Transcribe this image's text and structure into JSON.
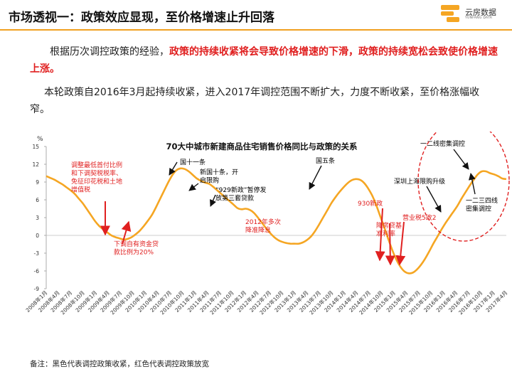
{
  "header": {
    "title": "市场透视一：政策效应显现，至价格增速止升回落",
    "logo_name": "云房数据",
    "logo_sub": "YUNFANG DATA",
    "accent_color": "#f0a020"
  },
  "paragraphs": {
    "p1_black": "根据历次调控政策的经验，",
    "p1_red": "政策的持续收紧将会导致价格增速的下滑，政策的持续宽松会致使价格增速上涨。",
    "p2": "本轮政策自2016年3月起持续收紧，进入2017年调控范围不断扩大，力度不断收紧，至价格涨幅收窄。"
  },
  "footnote": "备注：黑色代表调控政策收紧，红色代表调控政策放宽",
  "chart_data": {
    "type": "line",
    "title": "70大中城市新建商品住宅销售价格同比与政策的关系",
    "ylabel": "%",
    "ylim": [
      -9,
      15
    ],
    "yticks": [
      15,
      12,
      9,
      6,
      3,
      0,
      -3,
      -6,
      -9
    ],
    "xtick_labels": [
      "2008年1月",
      "2008年4月",
      "2008年7月",
      "2008年10月",
      "2009年1月",
      "2009年4月",
      "2009年7月",
      "2009年10月",
      "2010年1月",
      "2010年4月",
      "2010年7月",
      "2010年10月",
      "2011年1月",
      "2011年4月",
      "2011年7月",
      "2011年10月",
      "2012年1月",
      "2012年4月",
      "2012年7月",
      "2012年10月",
      "2013年1月",
      "2013年4月",
      "2013年7月",
      "2013年10月",
      "2014年1月",
      "2014年4月",
      "2014年7月",
      "2014年10月",
      "2015年1月",
      "2015年4月",
      "2015年7月",
      "2015年10月",
      "2016年1月",
      "2016年4月",
      "2016年7月",
      "2016年10月",
      "2017年1月",
      "2017年4月"
    ],
    "series": [
      {
        "color": "#f5a623",
        "values": [
          10.0,
          9.7,
          9.4,
          9.0,
          8.6,
          8.1,
          7.6,
          7.0,
          6.2,
          5.4,
          4.4,
          3.4,
          2.4,
          1.6,
          1.0,
          0.5,
          0.0,
          -0.3,
          -0.5,
          -0.7,
          -0.6,
          -0.3,
          0.2,
          0.8,
          1.6,
          2.5,
          3.5,
          4.8,
          6.2,
          7.6,
          9.0,
          10.2,
          11.0,
          11.3,
          11.2,
          10.8,
          10.2,
          9.6,
          9.2,
          8.9,
          8.7,
          8.2,
          7.6,
          7.0,
          6.4,
          5.8,
          5.2,
          4.6,
          4.4,
          4.5,
          4.3,
          3.8,
          3.0,
          2.1,
          1.2,
          0.4,
          -0.3,
          -0.8,
          -1.1,
          -1.3,
          -1.4,
          -1.4,
          -1.4,
          -1.2,
          -0.8,
          -0.2,
          0.7,
          1.8,
          3.0,
          4.2,
          5.4,
          6.4,
          7.3,
          8.1,
          8.8,
          9.3,
          9.5,
          9.4,
          8.9,
          8.0,
          6.8,
          5.2,
          3.3,
          1.4,
          -0.6,
          -2.5,
          -4.1,
          -5.3,
          -6.1,
          -6.4,
          -6.3,
          -5.8,
          -5.0,
          -4.0,
          -2.8,
          -1.5,
          -0.3,
          0.9,
          2.0,
          3.0,
          4.0,
          5.0,
          6.2,
          7.3,
          8.4,
          9.4,
          10.3,
          10.8,
          10.8,
          10.5,
          10.3,
          10.0,
          9.6,
          9.5
        ]
      }
    ],
    "annotations": [
      {
        "text": [
          "调整最低首付比例",
          "和下调契税税率、",
          "免征印花税和土地",
          "增值税"
        ],
        "color": "#e02020"
      },
      {
        "text": [
          "下调自有资金贷",
          "款比例为20%"
        ],
        "color": "#e02020"
      },
      {
        "text": [
          "国十一条"
        ],
        "color": "#000000"
      },
      {
        "text": [
          "新国十条，开",
          "启限购"
        ],
        "color": "#000000"
      },
      {
        "text": [
          "“929新政”暂停发",
          "放第三套贷款"
        ],
        "color": "#000000"
      },
      {
        "text": [
          "2012年多次",
          "降准降息"
        ],
        "color": "#e02020"
      },
      {
        "text": [
          "国五条"
        ],
        "color": "#000000"
      },
      {
        "text": [
          "930新政"
        ],
        "color": "#e02020"
      },
      {
        "text": [
          "降房贷基",
          "准利率"
        ],
        "color": "#e02020"
      },
      {
        "text": [
          "营业税5改2"
        ],
        "color": "#e02020"
      },
      {
        "text": [
          "深圳上海限购升级"
        ],
        "color": "#000000"
      },
      {
        "text": [
          "一二线密集调控"
        ],
        "color": "#000000"
      },
      {
        "text": [
          "一二三四线",
          "密集调控"
        ],
        "color": "#000000"
      }
    ]
  }
}
